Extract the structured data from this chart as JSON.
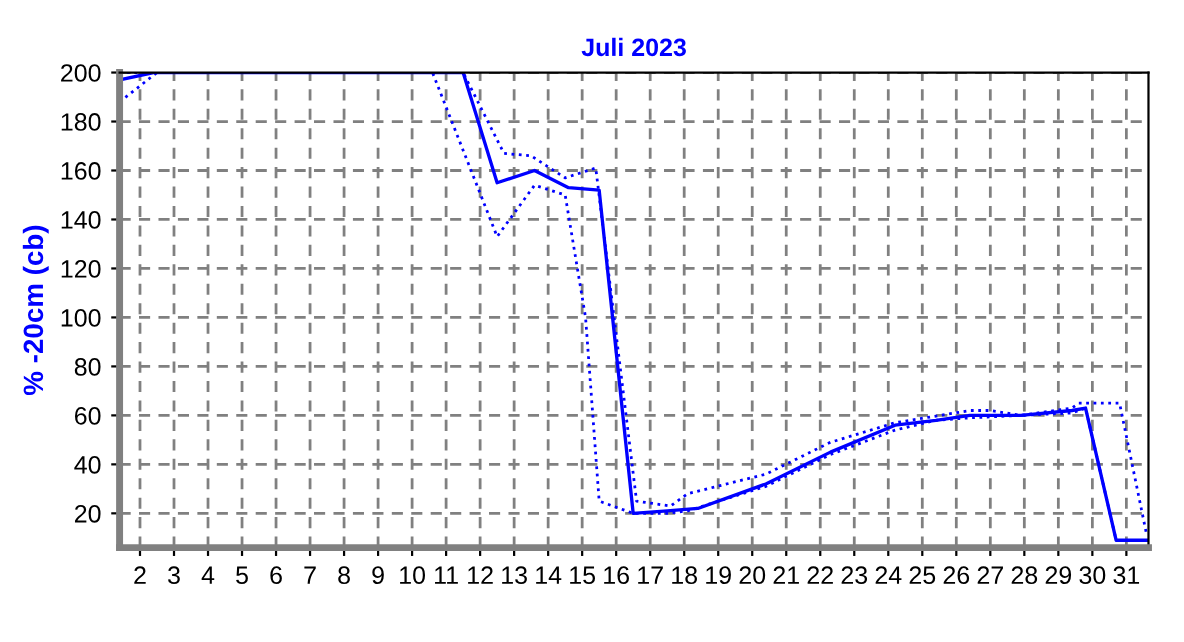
{
  "chart_data": {
    "type": "line",
    "title": "Juli 2023",
    "ylabel": "% -20cm (cb)",
    "xlim": [
      1.4,
      31.65
    ],
    "ylim": [
      6,
      200
    ],
    "xticks": [
      2,
      3,
      4,
      5,
      6,
      7,
      8,
      9,
      10,
      11,
      12,
      13,
      14,
      15,
      16,
      17,
      18,
      19,
      20,
      21,
      22,
      23,
      24,
      25,
      26,
      27,
      28,
      29,
      30,
      31
    ],
    "yticks": [
      20,
      40,
      60,
      80,
      100,
      120,
      140,
      160,
      180,
      200
    ],
    "grid": true,
    "legend": false,
    "marker": "none",
    "series": [
      {
        "color": "#0000ff",
        "line_style": "solid",
        "x": [
          1.4,
          2.4,
          11.5,
          12.5,
          13.6,
          14.6,
          15.5,
          16.5,
          17.5,
          18.4,
          20.4,
          22.3,
          24.2,
          25.4,
          26.4,
          27.9,
          29.4,
          29.8,
          30.7,
          31.6
        ],
        "values": [
          197,
          200,
          200,
          155,
          160,
          153,
          152,
          20,
          21,
          22,
          32,
          45,
          56,
          58,
          60,
          60,
          62,
          63,
          9,
          9
        ]
      },
      {
        "color": "#0000ff",
        "line_style": "dotted",
        "x": [
          1.4,
          11.5,
          12.7,
          13.5,
          14.5,
          15.4,
          16.6,
          17.6,
          18.1,
          20.4,
          22.3,
          24.2,
          26.4,
          27.0,
          27.9,
          29.4,
          29.6,
          30.8,
          31.6
        ],
        "values": [
          200,
          200,
          167,
          166,
          157,
          161,
          25,
          23,
          28,
          36,
          49,
          57,
          62,
          62,
          60,
          63,
          65,
          65,
          11
        ]
      },
      {
        "color": "#0000ff",
        "line_style": "dotted",
        "x": [
          1.4,
          2.5,
          10.6,
          12.5,
          13.6,
          14.5,
          15.1,
          15.5,
          16.5,
          17.5,
          18.1,
          20.4,
          22.3,
          24.2,
          25.4,
          26.4,
          27.9,
          29.4,
          29.8,
          30.7,
          31.6
        ],
        "values": [
          188,
          200,
          200,
          133,
          154,
          150,
          100,
          25,
          20,
          20,
          21,
          31,
          44,
          54,
          58,
          59,
          60,
          61,
          63,
          9,
          9
        ]
      }
    ]
  }
}
